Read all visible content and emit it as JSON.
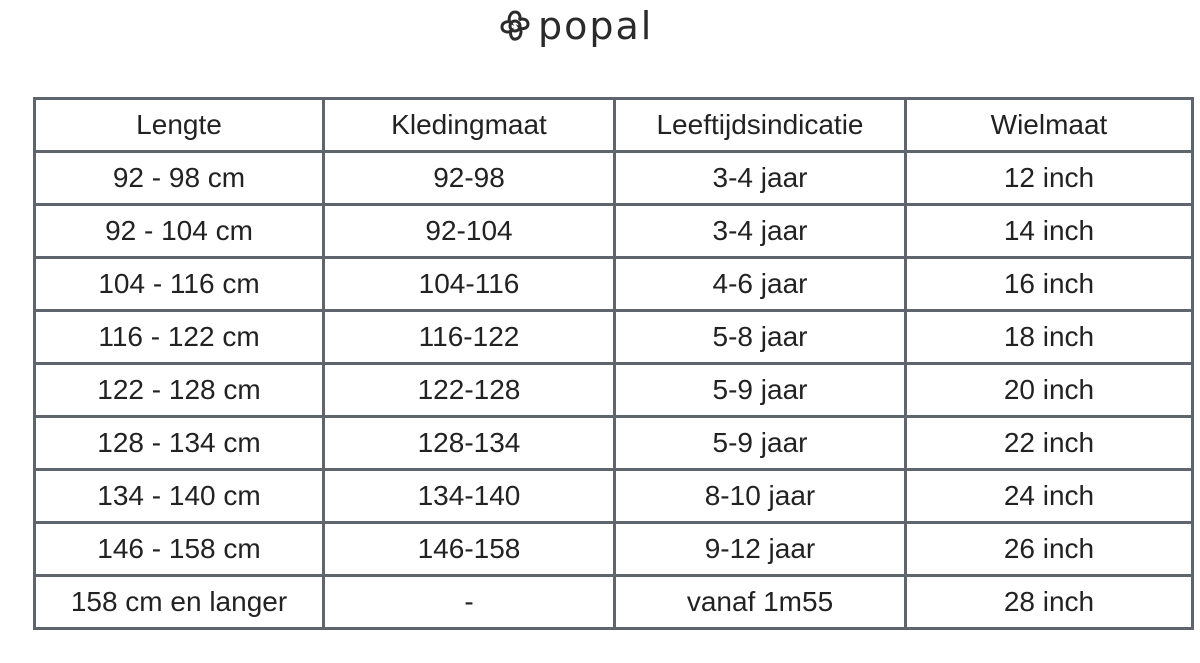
{
  "brand": {
    "name": "popal"
  },
  "table": {
    "headers": [
      "Lengte",
      "Kledingmaat",
      "Leeftijdsindicatie",
      "Wielmaat"
    ],
    "rows": [
      [
        "92 - 98 cm",
        "92-98",
        "3-4 jaar",
        "12 inch"
      ],
      [
        "92 - 104 cm",
        "92-104",
        "3-4 jaar",
        "14 inch"
      ],
      [
        "104 - 116 cm",
        "104-116",
        "4-6 jaar",
        "16 inch"
      ],
      [
        "116 - 122 cm",
        "116-122",
        "5-8 jaar",
        "18 inch"
      ],
      [
        "122 - 128 cm",
        "122-128",
        "5-9 jaar",
        "20 inch"
      ],
      [
        "128 - 134 cm",
        "128-134",
        "5-9 jaar",
        "22 inch"
      ],
      [
        "134 - 140 cm",
        "134-140",
        "8-10 jaar",
        "24 inch"
      ],
      [
        "146 - 158 cm",
        "146-158",
        "9-12 jaar",
        "26 inch"
      ],
      [
        "158 cm en langer",
        "-",
        "vanaf 1m55",
        "28 inch"
      ]
    ]
  },
  "colors": {
    "border": "#5f656c",
    "text": "#222222"
  }
}
